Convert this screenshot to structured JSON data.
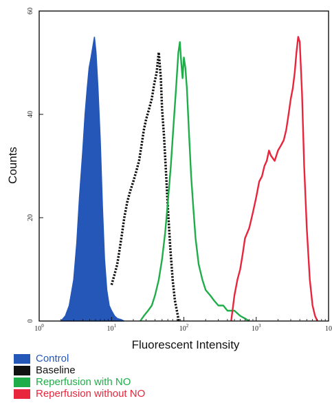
{
  "chart_data": {
    "type": "area",
    "title": "",
    "xlabel": "Fluorescent Intensity",
    "ylabel": "Counts",
    "xscale": "log",
    "xlim": [
      1,
      10000
    ],
    "ylim": [
      0,
      60
    ],
    "x_ticks": [
      {
        "value": 1,
        "base": "10",
        "exp": "0"
      },
      {
        "value": 10,
        "base": "10",
        "exp": "1"
      },
      {
        "value": 100,
        "base": "10",
        "exp": "2"
      },
      {
        "value": 1000,
        "base": "10",
        "exp": "3"
      },
      {
        "value": 10000,
        "base": "10",
        "exp": ""
      }
    ],
    "y_ticks": [
      {
        "value": 0,
        "label": "0"
      },
      {
        "value": 20,
        "label": "20"
      },
      {
        "value": 40,
        "label": "40"
      },
      {
        "value": 60,
        "label": "60"
      }
    ],
    "grid": false,
    "legend_position": "bottom-left",
    "series": [
      {
        "name": "Control",
        "color": "#2457b8",
        "style": "filled",
        "x": [
          2.0,
          2.3,
          2.6,
          3.0,
          3.3,
          3.6,
          4.0,
          4.3,
          4.6,
          4.9,
          5.2,
          5.5,
          5.8,
          6.1,
          6.5,
          7.0,
          7.5,
          8.0,
          8.6,
          9.3,
          10,
          11,
          12,
          13.5,
          15
        ],
        "y": [
          0,
          1,
          3,
          8,
          15,
          24,
          33,
          40,
          45,
          49,
          51,
          53,
          55,
          52,
          45,
          35,
          22,
          12,
          6,
          3,
          2,
          1,
          0.5,
          0.3,
          0
        ]
      },
      {
        "name": "Baseline",
        "color": "#111111",
        "style": "dotted",
        "x": [
          10,
          11,
          12,
          13,
          14,
          15,
          16.5,
          18,
          20,
          22,
          24,
          26,
          28,
          30,
          33,
          36,
          39,
          42,
          45,
          48,
          50,
          53,
          56,
          60,
          65,
          70,
          75,
          80,
          85
        ],
        "y": [
          7,
          9,
          11,
          14,
          17,
          20,
          23,
          25,
          27,
          29,
          31,
          34,
          37,
          39,
          41,
          43,
          46,
          48,
          52,
          47,
          41,
          36,
          30,
          22,
          14,
          8,
          4,
          2,
          0
        ]
      },
      {
        "name": "Reperfusion with NO",
        "color": "#1fad49",
        "style": "line",
        "x": [
          25,
          28,
          32,
          36,
          40,
          45,
          50,
          55,
          60,
          66,
          72,
          78,
          84,
          88,
          92,
          96,
          100,
          105,
          110,
          118,
          126,
          135,
          145,
          160,
          180,
          200,
          230,
          260,
          300,
          350,
          400,
          500,
          600,
          700,
          800
        ],
        "y": [
          0,
          1,
          2,
          3,
          5,
          8,
          12,
          17,
          23,
          30,
          38,
          45,
          52,
          54,
          50,
          47,
          51,
          49,
          45,
          36,
          28,
          22,
          16,
          11,
          8,
          6,
          5,
          4,
          3,
          3,
          2,
          2,
          1,
          0.5,
          0
        ]
      },
      {
        "name": "Reperfusion without NO",
        "color": "#e8253c",
        "style": "line",
        "x": [
          450,
          500,
          550,
          600,
          650,
          700,
          800,
          900,
          1000,
          1100,
          1200,
          1300,
          1400,
          1500,
          1600,
          1800,
          2000,
          2200,
          2400,
          2600,
          2800,
          3000,
          3200,
          3400,
          3600,
          3800,
          4000,
          4300,
          4600,
          5000,
          5500,
          6000,
          6500,
          7000
        ],
        "y": [
          0,
          5,
          8,
          10,
          13,
          16,
          18,
          21,
          24,
          27,
          28,
          30,
          31,
          33,
          32,
          31,
          33,
          34,
          35,
          37,
          40,
          43,
          45,
          48,
          52,
          55,
          54,
          44,
          30,
          18,
          8,
          3,
          1,
          0
        ]
      }
    ]
  },
  "legend": [
    {
      "label": "Control",
      "color": "#2457b8"
    },
    {
      "label": "Baseline",
      "color": "#111111"
    },
    {
      "label": "Reperfusion with NO",
      "color": "#1fad49"
    },
    {
      "label": "Reperfusion without NO",
      "color": "#e8253c"
    }
  ]
}
